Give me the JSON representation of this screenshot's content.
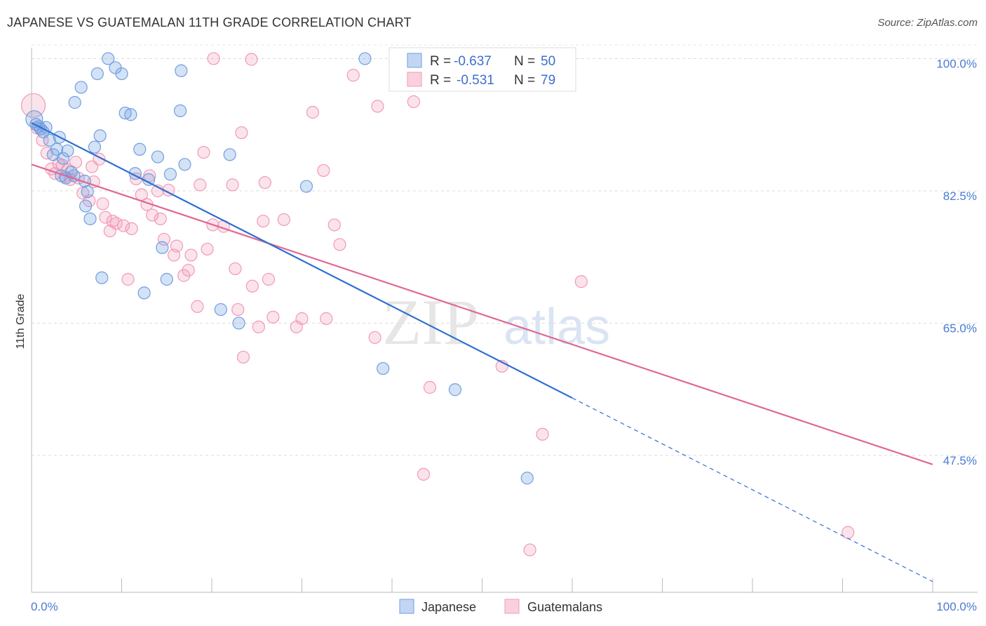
{
  "title": "JAPANESE VS GUATEMALAN 11TH GRADE CORRELATION CHART",
  "source": "Source: ZipAtlas.com",
  "watermark": {
    "zip": "ZIP",
    "atlas": "atlas"
  },
  "colors": {
    "japanese": "#6f9fe0",
    "japanese_line": "#2f6fd0",
    "guatemalan": "#f19ab8",
    "guatemalan_line": "#e06892",
    "tick_label": "#4a7bd1"
  },
  "legend": {
    "rows": [
      {
        "r_label": "R =",
        "r_value": "-0.637",
        "n_label": "N =",
        "n_value": "50"
      },
      {
        "r_label": "R =",
        "r_value": "-0.531",
        "n_label": "N =",
        "n_value": "79"
      }
    ]
  },
  "bottom_legend": {
    "japanese": "Japanese",
    "guatemalans": "Guatemalans"
  },
  "chart_data": {
    "type": "scatter",
    "title": "JAPANESE VS GUATEMALAN 11TH GRADE CORRELATION CHART",
    "ylabel": "11th Grade",
    "xlabel": "",
    "xlim": [
      0,
      100
    ],
    "ylim": [
      30.5,
      102
    ],
    "x_tick_labels": [
      "0.0%",
      "100.0%"
    ],
    "y_ticks": [
      100,
      82.5,
      65,
      47.5
    ],
    "y_tick_labels": [
      "100.0%",
      "82.5%",
      "65.0%",
      "47.5%"
    ],
    "grid": true,
    "series": [
      {
        "name": "Japanese",
        "points": [
          [
            0.3,
            92.0
          ],
          [
            0.5,
            91.3
          ],
          [
            0.8,
            91.0
          ],
          [
            1.0,
            90.7
          ],
          [
            1.3,
            90.3
          ],
          [
            1.6,
            90.9
          ],
          [
            2.0,
            89.2
          ],
          [
            2.8,
            88.0
          ],
          [
            3.1,
            89.6
          ],
          [
            3.3,
            84.5
          ],
          [
            3.5,
            86.8
          ],
          [
            3.8,
            84.2
          ],
          [
            4.0,
            87.8
          ],
          [
            4.7,
            84.5
          ],
          [
            4.8,
            94.2
          ],
          [
            5.5,
            96.2
          ],
          [
            6.0,
            80.5
          ],
          [
            6.2,
            82.4
          ],
          [
            6.5,
            78.8
          ],
          [
            7.0,
            88.3
          ],
          [
            7.3,
            98.0
          ],
          [
            7.6,
            89.8
          ],
          [
            7.8,
            71.0
          ],
          [
            8.5,
            100.0
          ],
          [
            9.3,
            98.8
          ],
          [
            10.0,
            98.0
          ],
          [
            10.4,
            92.8
          ],
          [
            11.0,
            92.6
          ],
          [
            11.5,
            84.8
          ],
          [
            12.0,
            88.0
          ],
          [
            12.5,
            69.0
          ],
          [
            13.0,
            84.0
          ],
          [
            14.0,
            87.0
          ],
          [
            14.5,
            75.0
          ],
          [
            15.0,
            70.8
          ],
          [
            15.4,
            84.7
          ],
          [
            16.5,
            93.1
          ],
          [
            16.6,
            98.4
          ],
          [
            17.0,
            86.0
          ],
          [
            21.0,
            66.8
          ],
          [
            22.0,
            87.3
          ],
          [
            23.0,
            65.0
          ],
          [
            30.5,
            83.1
          ],
          [
            37.0,
            100.0
          ],
          [
            39.0,
            59.0
          ],
          [
            47.0,
            56.2
          ],
          [
            55.0,
            44.5
          ],
          [
            4.4,
            85.0
          ],
          [
            5.9,
            83.8
          ],
          [
            2.4,
            87.3
          ]
        ]
      },
      {
        "name": "Guatemalans",
        "points": [
          [
            0.2,
            93.8
          ],
          [
            0.6,
            90.8
          ],
          [
            1.2,
            89.2
          ],
          [
            1.7,
            87.5
          ],
          [
            2.2,
            85.4
          ],
          [
            2.6,
            84.8
          ],
          [
            3.0,
            86.1
          ],
          [
            3.4,
            85.9
          ],
          [
            3.7,
            84.4
          ],
          [
            4.0,
            85.3
          ],
          [
            4.3,
            84.0
          ],
          [
            4.9,
            86.3
          ],
          [
            5.2,
            84.2
          ],
          [
            5.7,
            82.2
          ],
          [
            6.4,
            81.2
          ],
          [
            6.9,
            83.7
          ],
          [
            7.5,
            86.7
          ],
          [
            7.9,
            80.8
          ],
          [
            8.2,
            79.0
          ],
          [
            8.7,
            77.2
          ],
          [
            9.0,
            78.5
          ],
          [
            9.4,
            78.2
          ],
          [
            10.2,
            77.9
          ],
          [
            10.7,
            70.8
          ],
          [
            11.1,
            77.5
          ],
          [
            11.6,
            84.1
          ],
          [
            12.2,
            82.0
          ],
          [
            12.8,
            80.7
          ],
          [
            13.1,
            84.5
          ],
          [
            13.4,
            79.3
          ],
          [
            14.0,
            82.5
          ],
          [
            14.3,
            78.8
          ],
          [
            14.7,
            76.1
          ],
          [
            15.2,
            82.6
          ],
          [
            15.8,
            74.0
          ],
          [
            16.1,
            75.2
          ],
          [
            16.9,
            71.3
          ],
          [
            17.4,
            72.0
          ],
          [
            17.7,
            74.0
          ],
          [
            18.4,
            67.2
          ],
          [
            18.7,
            83.3
          ],
          [
            19.1,
            87.6
          ],
          [
            19.5,
            74.8
          ],
          [
            20.1,
            78.0
          ],
          [
            21.3,
            77.8
          ],
          [
            22.3,
            83.3
          ],
          [
            22.6,
            72.2
          ],
          [
            22.9,
            66.8
          ],
          [
            23.3,
            90.2
          ],
          [
            23.5,
            60.5
          ],
          [
            24.5,
            69.9
          ],
          [
            25.2,
            64.5
          ],
          [
            25.7,
            78.5
          ],
          [
            25.9,
            83.6
          ],
          [
            26.3,
            70.8
          ],
          [
            24.4,
            99.9
          ],
          [
            26.8,
            65.8
          ],
          [
            28.0,
            78.7
          ],
          [
            29.4,
            64.5
          ],
          [
            30.0,
            65.6
          ],
          [
            31.2,
            92.9
          ],
          [
            32.7,
            65.6
          ],
          [
            32.4,
            85.2
          ],
          [
            33.6,
            78.0
          ],
          [
            34.2,
            75.4
          ],
          [
            35.7,
            97.8
          ],
          [
            38.1,
            63.1
          ],
          [
            38.4,
            93.7
          ],
          [
            42.4,
            94.3
          ],
          [
            43.5,
            45.0
          ],
          [
            44.2,
            56.5
          ],
          [
            52.2,
            59.3
          ],
          [
            55.3,
            35.0
          ],
          [
            56.7,
            50.3
          ],
          [
            59.0,
            100.0
          ],
          [
            61.0,
            70.5
          ],
          [
            90.6,
            37.3
          ],
          [
            20.2,
            100.0
          ],
          [
            6.7,
            85.7
          ]
        ]
      }
    ],
    "trendlines": [
      {
        "series": "Japanese",
        "x": [
          0,
          60
        ],
        "y": [
          91.5,
          55.1
        ],
        "dashed_extension_to": [
          100,
          30.8
        ]
      },
      {
        "series": "Guatemalans",
        "x": [
          0,
          100
        ],
        "y": [
          86.0,
          46.3
        ]
      }
    ]
  }
}
